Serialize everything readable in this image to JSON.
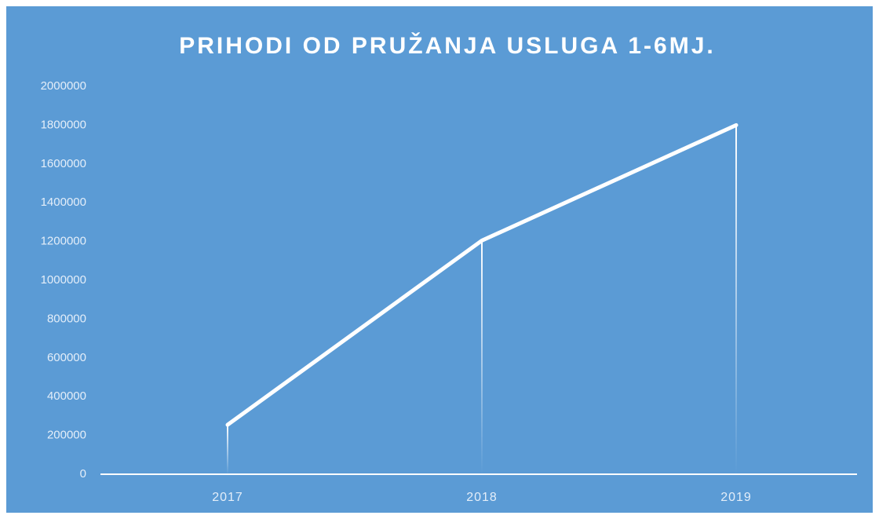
{
  "chart_data": {
    "type": "line",
    "title": "PRIHODI OD PRUŽANJA  USLUGA 1-6MJ.",
    "categories": [
      "2017",
      "2018",
      "2019"
    ],
    "series": [
      {
        "values": [
          255000,
          1205000,
          1800000
        ],
        "color": "#ffffff"
      }
    ],
    "ylim": [
      0,
      2000000
    ],
    "yticks": [
      0,
      200000,
      400000,
      600000,
      800000,
      1000000,
      1200000,
      1400000,
      1600000,
      1800000,
      2000000
    ],
    "drop_lines": true,
    "background": "#5b9bd5"
  }
}
